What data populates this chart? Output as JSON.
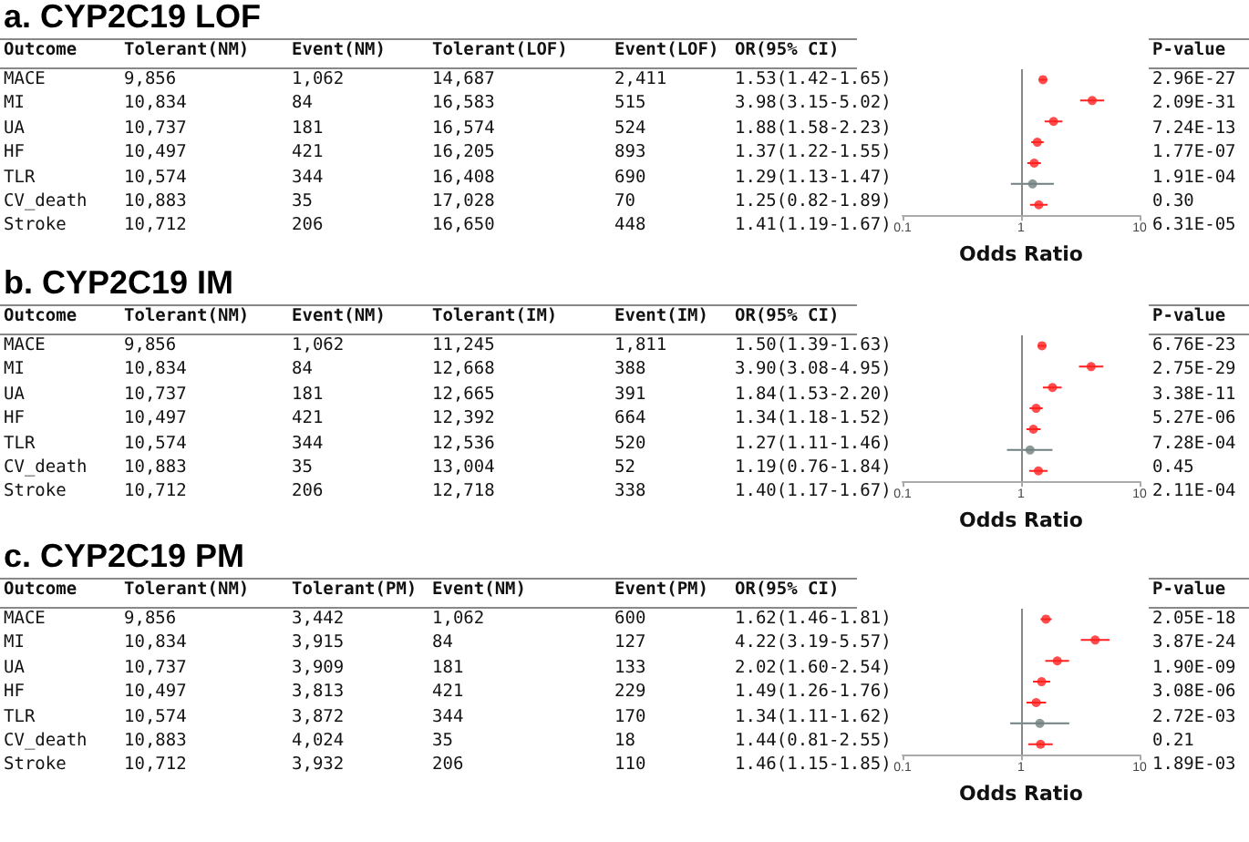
{
  "chart_data": [
    {
      "type": "other",
      "title": "a. CYP2C19 LOF",
      "categories": [
        "Outcome",
        "Tolerant(NM)",
        "Event(NM)",
        "Tolerant(LOF)",
        "Event(LOF)",
        "OR(95% CI)",
        "P-value"
      ],
      "cell_labels": [
        [
          "MACE",
          "9,856",
          "1,062",
          "14,687",
          "2,411",
          "1.53(1.42-1.65)",
          "2.96E-27"
        ],
        [
          "MI",
          "10,834",
          "84",
          "16,583",
          "515",
          "3.98(3.15-5.02)",
          "2.09E-31"
        ],
        [
          "UA",
          "10,737",
          "181",
          "16,574",
          "524",
          "1.88(1.58-2.23)",
          "7.24E-13"
        ],
        [
          "HF",
          "10,497",
          "421",
          "16,205",
          "893",
          "1.37(1.22-1.55)",
          "1.77E-07"
        ],
        [
          "TLR",
          "10,574",
          "344",
          "16,408",
          "690",
          "1.29(1.13-1.47)",
          "1.91E-04"
        ],
        [
          "CV_death",
          "10,883",
          "35",
          "17,028",
          "70",
          "1.25(0.82-1.89)",
          "0.30"
        ],
        [
          "Stroke",
          "10,712",
          "206",
          "16,650",
          "448",
          "1.41(1.19-1.67)",
          "6.31E-05"
        ]
      ]
    },
    {
      "type": "scatter",
      "orientation": "horizontal",
      "categories": [
        null,
        null,
        null,
        null,
        null,
        null,
        null
      ],
      "values": [
        1.53,
        3.98,
        1.88,
        1.37,
        1.29,
        1.25,
        1.41
      ],
      "errors": [
        [
          1.42,
          1.65
        ],
        [
          3.15,
          5.02
        ],
        [
          1.58,
          2.23
        ],
        [
          1.22,
          1.55
        ],
        [
          1.13,
          1.47
        ],
        [
          0.82,
          1.89
        ],
        [
          1.19,
          1.67
        ]
      ],
      "colors": [
        "#ff2020",
        "#ff2020",
        "#ff2020",
        "#ff2020",
        "#ff2020",
        "#708080",
        "#ff2020"
      ],
      "xlim": [
        0.1,
        10
      ],
      "xticks": [
        0.1,
        1,
        10
      ],
      "log": "x",
      "xlabel": "Odds Ratio",
      "tick_labels": "x",
      "marker": "circle",
      "grid": false,
      "ref_lines": [
        {
          "axis": "x",
          "value": 1,
          "color": "#888888"
        }
      ]
    },
    {
      "type": "other",
      "title": "b. CYP2C19 IM",
      "categories": [
        "Outcome",
        "Tolerant(NM)",
        "Event(NM)",
        "Tolerant(IM)",
        "Event(IM)",
        "OR(95% CI)",
        "P-value"
      ],
      "cell_labels": [
        [
          "MACE",
          "9,856",
          "1,062",
          "11,245",
          "1,811",
          "1.50(1.39-1.63)",
          "6.76E-23"
        ],
        [
          "MI",
          "10,834",
          "84",
          "12,668",
          "388",
          "3.90(3.08-4.95)",
          "2.75E-29"
        ],
        [
          "UA",
          "10,737",
          "181",
          "12,665",
          "391",
          "1.84(1.53-2.20)",
          "3.38E-11"
        ],
        [
          "HF",
          "10,497",
          "421",
          "12,392",
          "664",
          "1.34(1.18-1.52)",
          "5.27E-06"
        ],
        [
          "TLR",
          "10,574",
          "344",
          "12,536",
          "520",
          "1.27(1.11-1.46)",
          "7.28E-04"
        ],
        [
          "CV_death",
          "10,883",
          "35",
          "13,004",
          "52",
          "1.19(0.76-1.84)",
          "0.45"
        ],
        [
          "Stroke",
          "10,712",
          "206",
          "12,718",
          "338",
          "1.40(1.17-1.67)",
          "2.11E-04"
        ]
      ]
    },
    {
      "type": "scatter",
      "orientation": "horizontal",
      "categories": [
        null,
        null,
        null,
        null,
        null,
        null,
        null
      ],
      "values": [
        1.5,
        3.9,
        1.84,
        1.34,
        1.27,
        1.19,
        1.4
      ],
      "errors": [
        [
          1.39,
          1.63
        ],
        [
          3.08,
          4.95
        ],
        [
          1.53,
          2.2
        ],
        [
          1.18,
          1.52
        ],
        [
          1.11,
          1.46
        ],
        [
          0.76,
          1.84
        ],
        [
          1.17,
          1.67
        ]
      ],
      "colors": [
        "#ff2020",
        "#ff2020",
        "#ff2020",
        "#ff2020",
        "#ff2020",
        "#708080",
        "#ff2020"
      ],
      "xlim": [
        0.1,
        10
      ],
      "xticks": [
        0.1,
        1,
        10
      ],
      "log": "x",
      "xlabel": "Odds Ratio",
      "tick_labels": "x",
      "marker": "circle",
      "grid": false,
      "ref_lines": [
        {
          "axis": "x",
          "value": 1,
          "color": "#888888"
        }
      ]
    },
    {
      "type": "other",
      "title": "c. CYP2C19 PM",
      "categories": [
        "Outcome",
        "Tolerant(NM)",
        "Tolerant(PM)",
        "Event(NM)",
        "Event(PM)",
        "OR(95% CI)",
        "P-value"
      ],
      "cell_labels": [
        [
          "MACE",
          "9,856",
          "3,442",
          "1,062",
          "600",
          "1.62(1.46-1.81)",
          "2.05E-18"
        ],
        [
          "MI",
          "10,834",
          "3,915",
          "84",
          "127",
          "4.22(3.19-5.57)",
          "3.87E-24"
        ],
        [
          "UA",
          "10,737",
          "3,909",
          "181",
          "133",
          "2.02(1.60-2.54)",
          "1.90E-09"
        ],
        [
          "HF",
          "10,497",
          "3,813",
          "421",
          "229",
          "1.49(1.26-1.76)",
          "3.08E-06"
        ],
        [
          "TLR",
          "10,574",
          "3,872",
          "344",
          "170",
          "1.34(1.11-1.62)",
          "2.72E-03"
        ],
        [
          "CV_death",
          "10,883",
          "4,024",
          "35",
          "18",
          "1.44(0.81-2.55)",
          "0.21"
        ],
        [
          "Stroke",
          "10,712",
          "3,932",
          "206",
          "110",
          "1.46(1.15-1.85)",
          "1.89E-03"
        ]
      ]
    },
    {
      "type": "scatter",
      "orientation": "horizontal",
      "categories": [
        null,
        null,
        null,
        null,
        null,
        null,
        null
      ],
      "values": [
        1.62,
        4.22,
        2.02,
        1.49,
        1.34,
        1.44,
        1.46
      ],
      "errors": [
        [
          1.46,
          1.81
        ],
        [
          3.19,
          5.57
        ],
        [
          1.6,
          2.54
        ],
        [
          1.26,
          1.76
        ],
        [
          1.11,
          1.62
        ],
        [
          0.81,
          2.55
        ],
        [
          1.15,
          1.85
        ]
      ],
      "colors": [
        "#ff2020",
        "#ff2020",
        "#ff2020",
        "#ff2020",
        "#ff2020",
        "#708080",
        "#ff2020"
      ],
      "xlim": [
        0.1,
        10
      ],
      "xticks": [
        0.1,
        1,
        10
      ],
      "log": "x",
      "xlabel": "Odds Ratio",
      "tick_labels": "x",
      "marker": "circle",
      "grid": false,
      "ref_lines": [
        {
          "axis": "x",
          "value": 1,
          "color": "#888888"
        }
      ]
    }
  ]
}
